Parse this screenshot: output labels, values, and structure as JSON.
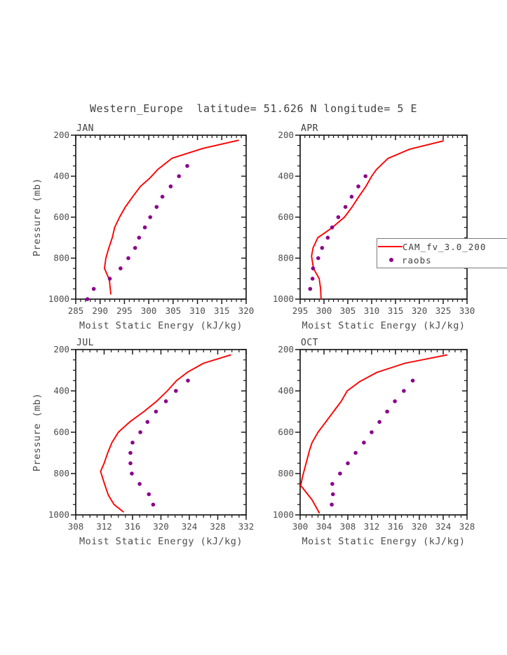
{
  "figure": {
    "title": "Western_Europe  latitude= 51.626 N longitude= 5 E",
    "ylabel": "Pressure (mb)",
    "xlabel": "Moist Static Energy (kJ/kg)"
  },
  "legend": {
    "cam_label": "CAM_fv_3.0_200",
    "raobs_label": "raobs"
  },
  "colors": {
    "cam_line": "#fe0000",
    "raobs_dot": "#8b008b",
    "axis": "#1a1a1a",
    "tick_text": "#4d4d4d"
  },
  "chart_data": [
    {
      "type": "line",
      "title": "JAN",
      "xlabel": "Moist Static Energy (kJ/kg)",
      "ylabel": "Pressure (mb)",
      "xlim": [
        285,
        320
      ],
      "xticks": [
        285,
        290,
        295,
        300,
        305,
        310,
        315,
        320
      ],
      "x_minor_step": 1,
      "ylim": [
        200,
        1000
      ],
      "yticks": [
        200,
        400,
        600,
        800,
        1000
      ],
      "y_minor_step": 50,
      "y_axis_inverted": true,
      "series": [
        {
          "name": "CAM_fv_3.0_200",
          "style": "line",
          "points": [
            [
              318.4,
              225
            ],
            [
              311.2,
              264
            ],
            [
              304.8,
              312
            ],
            [
              301.9,
              366
            ],
            [
              300.2,
              410
            ],
            [
              298.3,
              450
            ],
            [
              296.7,
              500
            ],
            [
              295.2,
              550
            ],
            [
              294.0,
              600
            ],
            [
              293.0,
              650
            ],
            [
              292.5,
              700
            ],
            [
              291.8,
              750
            ],
            [
              291.2,
              800
            ],
            [
              290.9,
              850
            ],
            [
              291.9,
              905
            ],
            [
              292.2,
              975
            ]
          ]
        },
        {
          "name": "raobs",
          "style": "scatter",
          "points": [
            [
              307.9,
              350
            ],
            [
              306.2,
              400
            ],
            [
              304.5,
              450
            ],
            [
              302.8,
              500
            ],
            [
              301.6,
              550
            ],
            [
              300.3,
              600
            ],
            [
              299.2,
              650
            ],
            [
              298.0,
              700
            ],
            [
              297.2,
              750
            ],
            [
              295.8,
              800
            ],
            [
              294.2,
              850
            ],
            [
              292.0,
              900
            ],
            [
              288.7,
              950
            ],
            [
              287.4,
              1000
            ]
          ]
        }
      ]
    },
    {
      "type": "line",
      "title": "APR",
      "xlabel": "Moist Static Energy (kJ/kg)",
      "ylabel": "Pressure (mb)",
      "xlim": [
        295,
        330
      ],
      "xticks": [
        295,
        300,
        305,
        310,
        315,
        320,
        325,
        330
      ],
      "x_minor_step": 1,
      "ylim": [
        200,
        1000
      ],
      "yticks": [
        200,
        400,
        600,
        800,
        1000
      ],
      "y_minor_step": 50,
      "y_axis_inverted": true,
      "series": [
        {
          "name": "CAM_fv_3.0_200",
          "style": "line",
          "points": [
            [
              325.0,
              228
            ],
            [
              318.0,
              268
            ],
            [
              313.4,
              314
            ],
            [
              311.0,
              368
            ],
            [
              310.0,
              400
            ],
            [
              308.8,
              450
            ],
            [
              307.3,
              500
            ],
            [
              305.9,
              550
            ],
            [
              304.3,
              600
            ],
            [
              301.5,
              655
            ],
            [
              298.7,
              700
            ],
            [
              297.7,
              750
            ],
            [
              297.4,
              790
            ],
            [
              297.8,
              850
            ],
            [
              299.0,
              900
            ],
            [
              299.3,
              950
            ],
            [
              299.4,
              1000
            ]
          ]
        },
        {
          "name": "raobs",
          "style": "scatter",
          "points": [
            [
              308.7,
              400
            ],
            [
              307.2,
              450
            ],
            [
              305.8,
              500
            ],
            [
              304.5,
              550
            ],
            [
              303.0,
              600
            ],
            [
              301.7,
              650
            ],
            [
              300.8,
              700
            ],
            [
              299.6,
              750
            ],
            [
              298.8,
              800
            ],
            [
              297.7,
              850
            ],
            [
              297.6,
              900
            ],
            [
              297.1,
              950
            ]
          ]
        }
      ]
    },
    {
      "type": "line",
      "title": "JUL",
      "xlabel": "Moist Static Energy (kJ/kg)",
      "ylabel": "Pressure (mb)",
      "xlim": [
        308,
        332
      ],
      "xticks": [
        308,
        312,
        316,
        320,
        324,
        328,
        332
      ],
      "x_minor_step": 1,
      "ylim": [
        200,
        1000
      ],
      "yticks": [
        200,
        400,
        600,
        800,
        1000
      ],
      "y_minor_step": 50,
      "y_axis_inverted": true,
      "series": [
        {
          "name": "CAM_fv_3.0_200",
          "style": "line",
          "points": [
            [
              329.8,
              226
            ],
            [
              326.0,
              266
            ],
            [
              323.8,
              308
            ],
            [
              322.2,
              350
            ],
            [
              320.9,
              400
            ],
            [
              319.4,
              450
            ],
            [
              317.6,
              500
            ],
            [
              315.6,
              550
            ],
            [
              314.0,
              600
            ],
            [
              313.1,
              650
            ],
            [
              312.5,
              700
            ],
            [
              312.0,
              750
            ],
            [
              311.5,
              790
            ],
            [
              312.1,
              855
            ],
            [
              312.6,
              905
            ],
            [
              313.4,
              950
            ],
            [
              314.7,
              985
            ]
          ]
        },
        {
          "name": "raobs",
          "style": "scatter",
          "points": [
            [
              323.8,
              350
            ],
            [
              322.1,
              400
            ],
            [
              320.7,
              450
            ],
            [
              319.3,
              500
            ],
            [
              318.1,
              550
            ],
            [
              317.1,
              600
            ],
            [
              316.0,
              650
            ],
            [
              315.7,
              700
            ],
            [
              315.7,
              750
            ],
            [
              315.9,
              800
            ],
            [
              317.0,
              850
            ],
            [
              318.3,
              900
            ],
            [
              318.9,
              950
            ]
          ]
        }
      ]
    },
    {
      "type": "line",
      "title": "OCT",
      "xlabel": "Moist Static Energy (kJ/kg)",
      "ylabel": "Pressure (mb)",
      "xlim": [
        300,
        328
      ],
      "xticks": [
        300,
        304,
        308,
        312,
        316,
        320,
        324,
        328
      ],
      "x_minor_step": 1,
      "ylim": [
        200,
        1000
      ],
      "yticks": [
        200,
        400,
        600,
        800,
        1000
      ],
      "y_minor_step": 50,
      "y_axis_inverted": true,
      "series": [
        {
          "name": "CAM_fv_3.0_200",
          "style": "line",
          "points": [
            [
              324.6,
              226
            ],
            [
              317.6,
              266
            ],
            [
              312.9,
              310
            ],
            [
              310.0,
              355
            ],
            [
              307.9,
              400
            ],
            [
              306.9,
              450
            ],
            [
              305.6,
              500
            ],
            [
              304.3,
              550
            ],
            [
              303.0,
              600
            ],
            [
              302.0,
              650
            ],
            [
              301.6,
              685
            ],
            [
              301.0,
              750
            ],
            [
              300.4,
              815
            ],
            [
              300.1,
              858
            ],
            [
              302.0,
              927
            ],
            [
              303.2,
              990
            ]
          ]
        },
        {
          "name": "raobs",
          "style": "scatter",
          "points": [
            [
              318.9,
              350
            ],
            [
              317.4,
              400
            ],
            [
              315.9,
              450
            ],
            [
              314.6,
              500
            ],
            [
              313.3,
              550
            ],
            [
              312.0,
              600
            ],
            [
              310.7,
              650
            ],
            [
              309.3,
              700
            ],
            [
              308.0,
              750
            ],
            [
              306.7,
              800
            ],
            [
              305.4,
              850
            ],
            [
              305.5,
              900
            ],
            [
              305.3,
              950
            ]
          ]
        }
      ]
    }
  ]
}
